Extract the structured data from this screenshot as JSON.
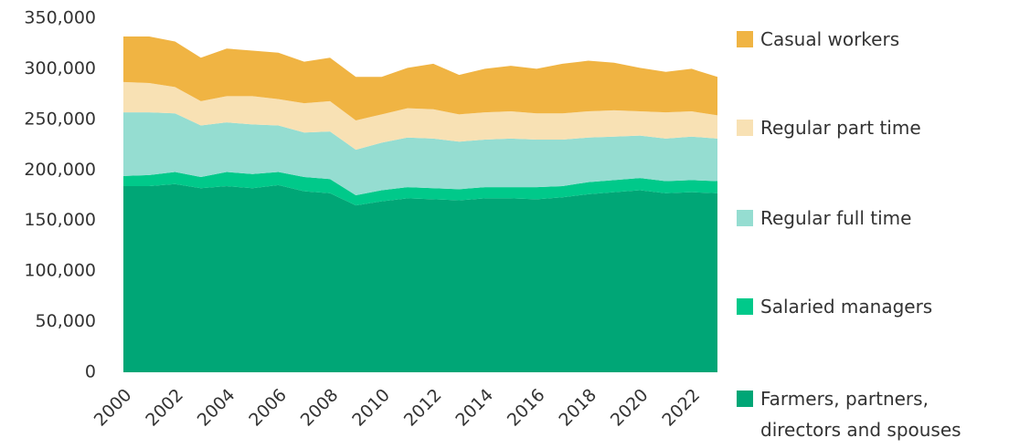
{
  "chart_data": {
    "type": "stacked_area",
    "x": [
      2000,
      2001,
      2002,
      2003,
      2004,
      2005,
      2006,
      2007,
      2008,
      2009,
      2010,
      2011,
      2012,
      2013,
      2014,
      2015,
      2016,
      2017,
      2018,
      2019,
      2020,
      2021,
      2022,
      2023
    ],
    "xlim": [
      2000,
      2023
    ],
    "xticks": [
      2000,
      2002,
      2004,
      2006,
      2008,
      2010,
      2012,
      2014,
      2016,
      2018,
      2020,
      2022
    ],
    "ylim": [
      0,
      350000
    ],
    "yticks": [
      0,
      {
        "value": 50000,
        "label": "50,000"
      },
      {
        "value": 100000,
        "label": "100,000"
      },
      {
        "value": 150000,
        "label": "150,000"
      },
      {
        "value": 200000,
        "label": "200,000"
      },
      {
        "value": 250000,
        "label": "250,000"
      },
      {
        "value": 300000,
        "label": "300,000"
      },
      {
        "value": 350000,
        "label": "350,000"
      }
    ],
    "grid": false,
    "legend": "right",
    "series": [
      {
        "name": "Farmers, partners, directors and spouses",
        "color": "#00a676",
        "values": [
          184000,
          184000,
          186000,
          182000,
          184000,
          182000,
          185000,
          179000,
          177000,
          165000,
          169000,
          172000,
          171000,
          170000,
          172000,
          172000,
          171000,
          173000,
          176000,
          178000,
          180000,
          177000,
          178000,
          177000
        ]
      },
      {
        "name": "Salaried managers",
        "color": "#00c98a",
        "values": [
          10000,
          11000,
          12000,
          11000,
          14000,
          14000,
          13000,
          14000,
          14000,
          10000,
          11000,
          11000,
          11000,
          11000,
          11000,
          11000,
          12000,
          11000,
          12000,
          12000,
          12000,
          12000,
          12000,
          12000
        ]
      },
      {
        "name": "Regular full time",
        "color": "#95ddd1",
        "values": [
          63000,
          62000,
          58000,
          51000,
          49000,
          49000,
          46000,
          44000,
          47000,
          45000,
          47000,
          49000,
          49000,
          47000,
          47000,
          48000,
          47000,
          46000,
          44000,
          43000,
          42000,
          42000,
          43000,
          42000
        ]
      },
      {
        "name": "Regular part time",
        "color": "#f8e1b4",
        "values": [
          30000,
          29000,
          26000,
          24000,
          26000,
          28000,
          26000,
          29000,
          30000,
          29000,
          28000,
          29000,
          29000,
          27000,
          27000,
          27000,
          26000,
          26000,
          26000,
          26000,
          24000,
          26000,
          25000,
          23000
        ]
      },
      {
        "name": "Casual workers",
        "color": "#f0b443",
        "values": [
          45000,
          46000,
          45000,
          43000,
          47000,
          45000,
          46000,
          41000,
          43000,
          43000,
          37000,
          40000,
          45000,
          39000,
          43000,
          45000,
          44000,
          49000,
          50000,
          47000,
          43000,
          40000,
          42000,
          38000
        ]
      }
    ]
  }
}
